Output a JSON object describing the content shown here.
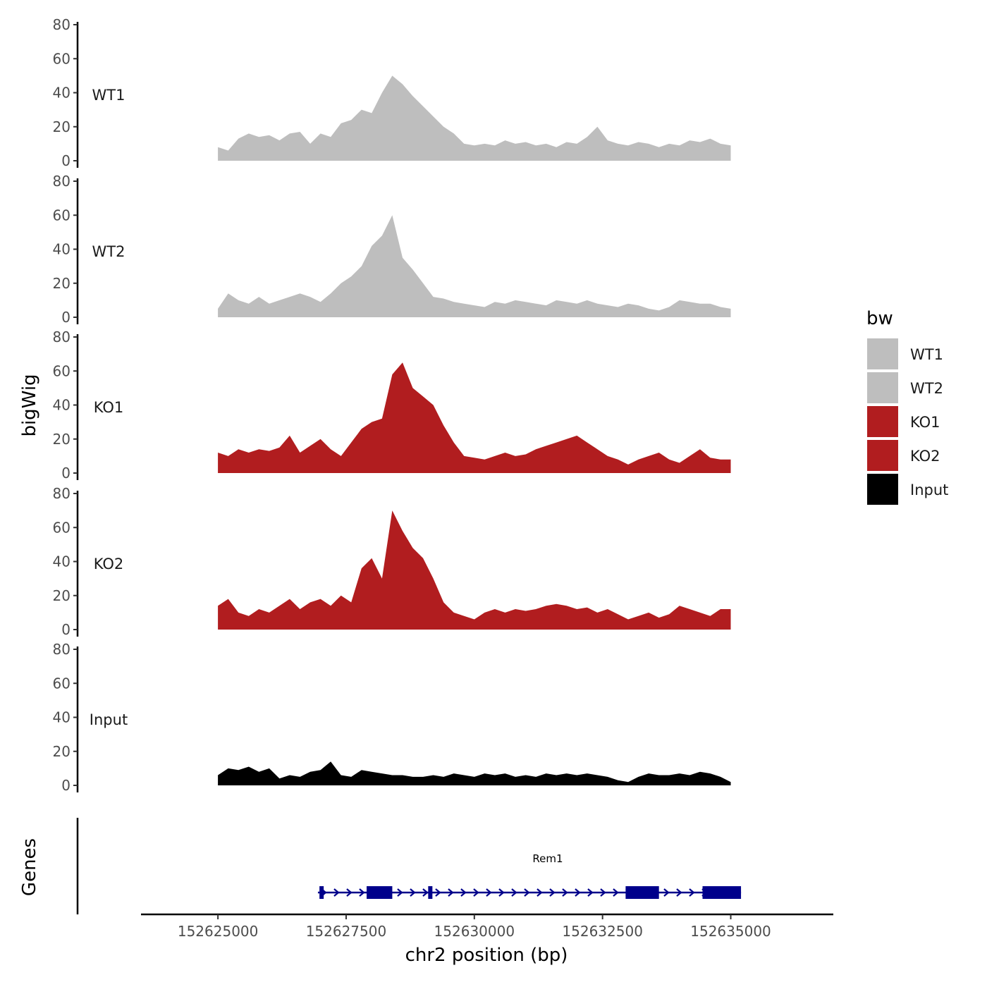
{
  "chart_data": {
    "type": "area",
    "title": "",
    "ylabel": "bigWig",
    "xlabel": "chr2 position (bp)",
    "xlim": [
      152623500,
      152637000
    ],
    "ylim": [
      0,
      80
    ],
    "y_ticks": [
      "80",
      "60",
      "40",
      "20",
      "0"
    ],
    "x_ticks": [
      {
        "value": 152625000,
        "label": "152625000"
      },
      {
        "value": 152627500,
        "label": "152627500"
      },
      {
        "value": 152630000,
        "label": "152630000"
      },
      {
        "value": 152632500,
        "label": "152632500"
      },
      {
        "value": 152635000,
        "label": "152635000"
      }
    ],
    "tracks": [
      {
        "name": "WT1",
        "label": "WT1",
        "color": "#bebebe",
        "x": [
          152625000,
          152625200,
          152625400,
          152625600,
          152625800,
          152626000,
          152626200,
          152626400,
          152626600,
          152626800,
          152627000,
          152627200,
          152627400,
          152627600,
          152627800,
          152628000,
          152628200,
          152628400,
          152628600,
          152628800,
          152629000,
          152629200,
          152629400,
          152629600,
          152629800,
          152630000,
          152630200,
          152630400,
          152630600,
          152630800,
          152631000,
          152631200,
          152631400,
          152631600,
          152631800,
          152632000,
          152632200,
          152632400,
          152632600,
          152632800,
          152633000,
          152633200,
          152633400,
          152633600,
          152633800,
          152634000,
          152634200,
          152634400,
          152634600,
          152634800,
          152635000
        ],
        "values": [
          8,
          6,
          13,
          16,
          14,
          15,
          12,
          16,
          17,
          10,
          16,
          14,
          22,
          24,
          30,
          28,
          40,
          50,
          45,
          38,
          32,
          26,
          20,
          16,
          10,
          9,
          10,
          9,
          12,
          10,
          11,
          9,
          10,
          8,
          11,
          10,
          14,
          20,
          12,
          10,
          9,
          11,
          10,
          8,
          10,
          9,
          12,
          11,
          13,
          10,
          9
        ]
      },
      {
        "name": "WT2",
        "label": "WT2",
        "color": "#bebebe",
        "x": [
          152625000,
          152625200,
          152625400,
          152625600,
          152625800,
          152626000,
          152626200,
          152626400,
          152626600,
          152626800,
          152627000,
          152627200,
          152627400,
          152627600,
          152627800,
          152628000,
          152628200,
          152628400,
          152628600,
          152628800,
          152629000,
          152629200,
          152629400,
          152629600,
          152629800,
          152630000,
          152630200,
          152630400,
          152630600,
          152630800,
          152631000,
          152631200,
          152631400,
          152631600,
          152631800,
          152632000,
          152632200,
          152632400,
          152632600,
          152632800,
          152633000,
          152633200,
          152633400,
          152633600,
          152633800,
          152634000,
          152634200,
          152634400,
          152634600,
          152634800,
          152635000
        ],
        "values": [
          5,
          14,
          10,
          8,
          12,
          8,
          10,
          12,
          14,
          12,
          9,
          14,
          20,
          24,
          30,
          42,
          48,
          60,
          35,
          28,
          20,
          12,
          11,
          9,
          8,
          7,
          6,
          9,
          8,
          10,
          9,
          8,
          7,
          10,
          9,
          8,
          10,
          8,
          7,
          6,
          8,
          7,
          5,
          4,
          6,
          10,
          9,
          8,
          8,
          6,
          5
        ]
      },
      {
        "name": "KO1",
        "label": "KO1",
        "color": "#b11d1f",
        "x": [
          152625000,
          152625200,
          152625400,
          152625600,
          152625800,
          152626000,
          152626200,
          152626400,
          152626600,
          152626800,
          152627000,
          152627200,
          152627400,
          152627600,
          152627800,
          152628000,
          152628200,
          152628400,
          152628600,
          152628800,
          152629000,
          152629200,
          152629400,
          152629600,
          152629800,
          152630000,
          152630200,
          152630400,
          152630600,
          152630800,
          152631000,
          152631200,
          152631400,
          152631600,
          152631800,
          152632000,
          152632200,
          152632400,
          152632600,
          152632800,
          152633000,
          152633200,
          152633400,
          152633600,
          152633800,
          152634000,
          152634200,
          152634400,
          152634600,
          152634800,
          152635000
        ],
        "values": [
          12,
          10,
          14,
          12,
          14,
          13,
          15,
          22,
          12,
          16,
          20,
          14,
          10,
          18,
          26,
          30,
          32,
          58,
          65,
          50,
          45,
          40,
          28,
          18,
          10,
          9,
          8,
          10,
          12,
          10,
          11,
          14,
          16,
          18,
          20,
          22,
          18,
          14,
          10,
          8,
          5,
          8,
          10,
          12,
          8,
          6,
          10,
          14,
          9,
          8,
          8
        ]
      },
      {
        "name": "KO2",
        "label": "KO2",
        "color": "#b11d1f",
        "x": [
          152625000,
          152625200,
          152625400,
          152625600,
          152625800,
          152626000,
          152626200,
          152626400,
          152626600,
          152626800,
          152627000,
          152627200,
          152627400,
          152627600,
          152627800,
          152628000,
          152628200,
          152628400,
          152628600,
          152628800,
          152629000,
          152629200,
          152629400,
          152629600,
          152629800,
          152630000,
          152630200,
          152630400,
          152630600,
          152630800,
          152631000,
          152631200,
          152631400,
          152631600,
          152631800,
          152632000,
          152632200,
          152632400,
          152632600,
          152632800,
          152633000,
          152633200,
          152633400,
          152633600,
          152633800,
          152634000,
          152634200,
          152634400,
          152634600,
          152634800,
          152635000
        ],
        "values": [
          14,
          18,
          10,
          8,
          12,
          10,
          14,
          18,
          12,
          16,
          18,
          14,
          20,
          16,
          36,
          42,
          30,
          70,
          58,
          48,
          42,
          30,
          16,
          10,
          8,
          6,
          10,
          12,
          10,
          12,
          11,
          12,
          14,
          15,
          14,
          12,
          13,
          10,
          12,
          9,
          6,
          8,
          10,
          7,
          9,
          14,
          12,
          10,
          8,
          12,
          12
        ]
      },
      {
        "name": "Input",
        "label": "Input",
        "color": "#000000",
        "x": [
          152625000,
          152625200,
          152625400,
          152625600,
          152625800,
          152626000,
          152626200,
          152626400,
          152626600,
          152626800,
          152627000,
          152627200,
          152627400,
          152627600,
          152627800,
          152628000,
          152628200,
          152628400,
          152628600,
          152628800,
          152629000,
          152629200,
          152629400,
          152629600,
          152629800,
          152630000,
          152630200,
          152630400,
          152630600,
          152630800,
          152631000,
          152631200,
          152631400,
          152631600,
          152631800,
          152632000,
          152632200,
          152632400,
          152632600,
          152632800,
          152633000,
          152633200,
          152633400,
          152633600,
          152633800,
          152634000,
          152634200,
          152634400,
          152634600,
          152634800,
          152635000
        ],
        "values": [
          6,
          10,
          9,
          11,
          8,
          10,
          4,
          6,
          5,
          8,
          9,
          14,
          6,
          5,
          9,
          8,
          7,
          6,
          6,
          5,
          5,
          6,
          5,
          7,
          6,
          5,
          7,
          6,
          7,
          5,
          6,
          5,
          7,
          6,
          7,
          6,
          7,
          6,
          5,
          3,
          2,
          5,
          7,
          6,
          6,
          7,
          6,
          8,
          7,
          5,
          2
        ]
      }
    ],
    "legend": {
      "title": "bw",
      "placement": "right",
      "items": [
        {
          "label": "WT1",
          "color": "#bebebe"
        },
        {
          "label": "WT2",
          "color": "#bebebe"
        },
        {
          "label": "KO1",
          "color": "#b11d1f"
        },
        {
          "label": "KO2",
          "color": "#b11d1f"
        },
        {
          "label": "Input",
          "color": "#000000"
        }
      ]
    },
    "genes_track": {
      "ylabel": "Genes",
      "color": "#00008b",
      "gene": {
        "name": "Rem1",
        "start": 152626950,
        "end": 152635200,
        "strand": "+",
        "exons": [
          {
            "start": 152626980,
            "end": 152627060
          },
          {
            "start": 152627900,
            "end": 152628400
          },
          {
            "start": 152629100,
            "end": 152629180
          },
          {
            "start": 152632950,
            "end": 152633600
          },
          {
            "start": 152634450,
            "end": 152635200
          }
        ]
      }
    }
  }
}
